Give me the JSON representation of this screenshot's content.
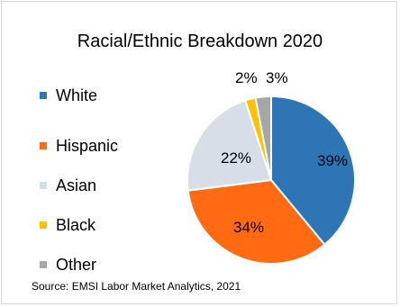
{
  "chart_data": {
    "type": "pie",
    "title": "Racial/Ethnic Breakdown 2020",
    "source": "Source: EMSI Labor Market Analytics, 2021",
    "legend_position": "left",
    "slices": [
      {
        "label": "White",
        "value": 39,
        "display": "39%",
        "color": "#2E75B6"
      },
      {
        "label": "Hispanic",
        "value": 34,
        "display": "34%",
        "color": "#FF6A13"
      },
      {
        "label": "Asian",
        "value": 22,
        "display": "22%",
        "color": "#D6DFE8"
      },
      {
        "label": "Black",
        "value": 2,
        "display": "2%",
        "color": "#FFC000"
      },
      {
        "label": "Other",
        "value": 3,
        "display": "3%",
        "color": "#A6A6A6"
      }
    ]
  }
}
